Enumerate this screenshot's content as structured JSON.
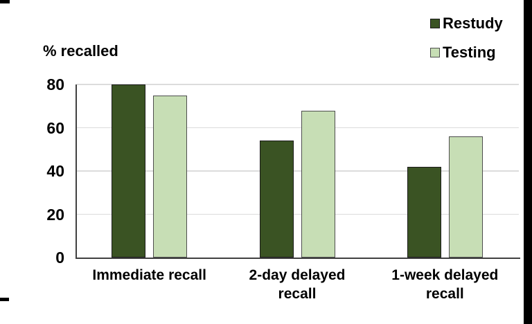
{
  "chart_data": {
    "type": "bar",
    "title": "",
    "ylabel": "% recalled",
    "xlabel": "",
    "categories": [
      "Immediate recall",
      "2-day delayed\nrecall",
      "1-week delayed\nrecall"
    ],
    "series": [
      {
        "name": "Restudy",
        "values": [
          80,
          54,
          42
        ],
        "color": "#3a5323",
        "border": "#1a1a1a"
      },
      {
        "name": "Testing",
        "values": [
          75,
          68,
          56
        ],
        "color": "#c7deb5",
        "border": "#4d4d4d"
      }
    ],
    "yticks": [
      0,
      20,
      40,
      60,
      80
    ],
    "ylim": [
      0,
      80
    ],
    "grid": true,
    "legend_position": "top-right"
  },
  "colors": {
    "background": "#ffffff",
    "gridline": "#dcdcdc",
    "axis": "#404040",
    "text": "#000000"
  }
}
